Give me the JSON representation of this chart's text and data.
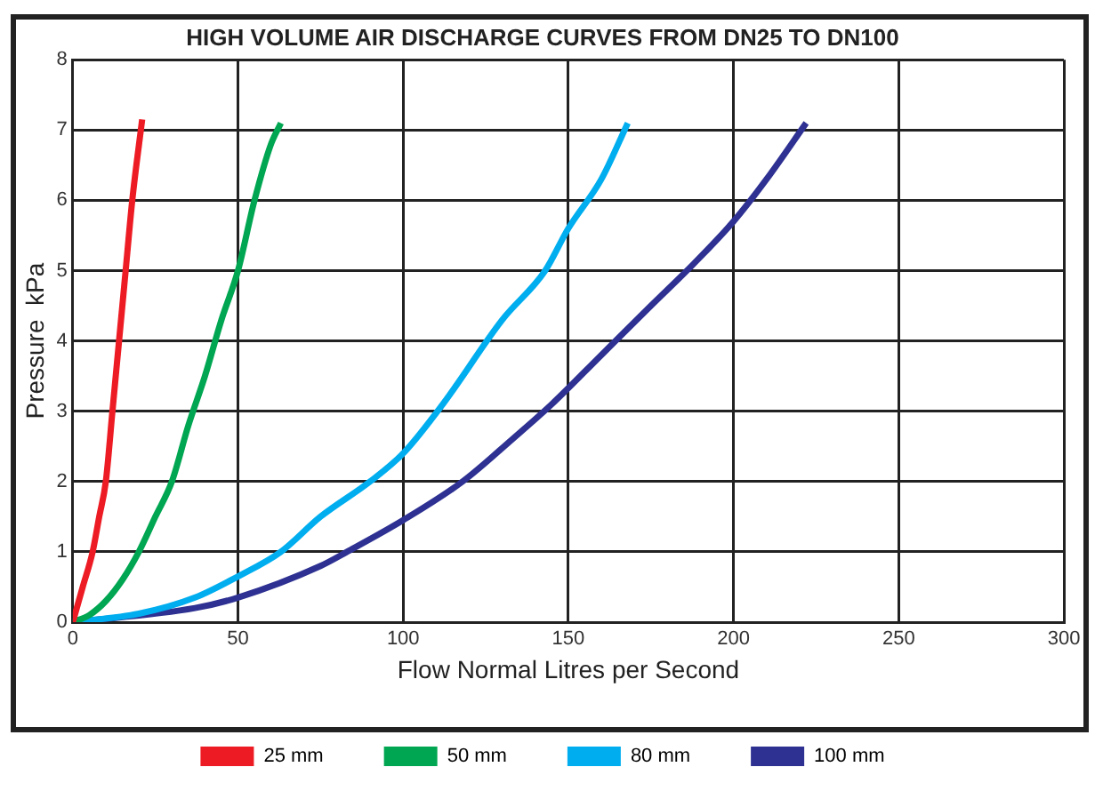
{
  "chart_data": {
    "type": "line",
    "title": "HIGH VOLUME AIR DISCHARGE CURVES FROM DN25 TO DN100",
    "xlabel": "Flow Normal Litres per Second",
    "ylabel": "Pressure  kPa",
    "xlim": [
      0,
      300
    ],
    "xticks": [
      0,
      50,
      100,
      150,
      200,
      250,
      300
    ],
    "ylim": [
      0,
      8
    ],
    "yticks": [
      0,
      1,
      2,
      3,
      4,
      5,
      6,
      7,
      8
    ],
    "grid": true,
    "legend": "bottom",
    "marker": "none",
    "series": [
      {
        "name": "25 mm",
        "color": "#ed1c24",
        "x": [
          0,
          3,
          6,
          8,
          10,
          12,
          14,
          16,
          18,
          21
        ],
        "values": [
          0,
          0.5,
          1,
          1.5,
          2,
          3,
          4,
          5,
          6,
          7.15
        ]
      },
      {
        "name": "50 mm",
        "color": "#00a651",
        "x": [
          0,
          5,
          10,
          15,
          20,
          25,
          30,
          35,
          40,
          45,
          50,
          55,
          60,
          63
        ],
        "values": [
          0,
          0.1,
          0.3,
          0.6,
          1,
          1.5,
          2,
          2.8,
          3.5,
          4.3,
          5,
          6,
          6.8,
          7.1
        ]
      },
      {
        "name": "80 mm",
        "color": "#00aeef",
        "x": [
          0,
          20,
          37,
          50,
          63,
          75,
          90,
          100,
          112,
          130,
          143,
          150,
          160,
          168
        ],
        "values": [
          0,
          0.12,
          0.35,
          0.65,
          1,
          1.5,
          2,
          2.4,
          3.1,
          4.3,
          5,
          5.6,
          6.3,
          7.1
        ]
      },
      {
        "name": "100 mm",
        "color": "#2e3192",
        "x": [
          0,
          37,
          50,
          75,
          83,
          100,
          118,
          133,
          145,
          160,
          175,
          188,
          200,
          210,
          222
        ],
        "values": [
          0,
          0.2,
          0.35,
          0.8,
          1,
          1.45,
          2,
          2.6,
          3.1,
          3.8,
          4.5,
          5.1,
          5.7,
          6.3,
          7.1
        ]
      }
    ]
  }
}
